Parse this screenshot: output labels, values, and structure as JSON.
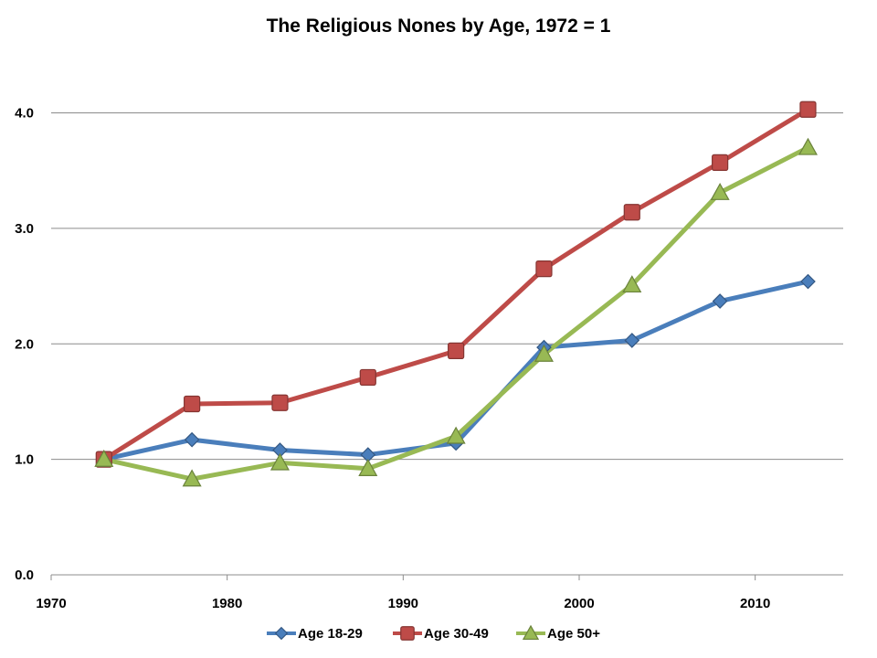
{
  "chart_data": {
    "type": "line",
    "title": "The Religious Nones by Age, 1972 = 1",
    "xlabel": "",
    "ylabel": "",
    "xlim": [
      1970,
      2015
    ],
    "ylim": [
      0,
      4.4
    ],
    "x_ticks": [
      1970,
      1980,
      1990,
      2000,
      2010
    ],
    "x_tick_labels": [
      "1970",
      "1980",
      "1990",
      "2000",
      "2010"
    ],
    "y_ticks": [
      0,
      1,
      2,
      3,
      4
    ],
    "y_tick_labels": [
      "0.0",
      "1.0",
      "2.0",
      "3.0",
      "4.0"
    ],
    "grid": "horizontal",
    "legend_position": "bottom",
    "x": [
      1973,
      1978,
      1983,
      1988,
      1993,
      1998,
      2003,
      2008,
      2013
    ],
    "series": [
      {
        "name": "Age 18-29",
        "color": "#4a7ebb",
        "marker": "diamond",
        "values": [
          1.0,
          1.17,
          1.08,
          1.04,
          1.14,
          1.97,
          2.03,
          2.37,
          2.54
        ]
      },
      {
        "name": "Age 30-49",
        "color": "#be4b48",
        "marker": "square",
        "values": [
          1.0,
          1.48,
          1.49,
          1.71,
          1.94,
          2.65,
          3.14,
          3.57,
          4.03
        ]
      },
      {
        "name": "Age 50+",
        "color": "#98b954",
        "marker": "triangle",
        "values": [
          1.0,
          0.83,
          0.97,
          0.92,
          1.2,
          1.91,
          2.51,
          3.31,
          3.7
        ]
      }
    ]
  }
}
